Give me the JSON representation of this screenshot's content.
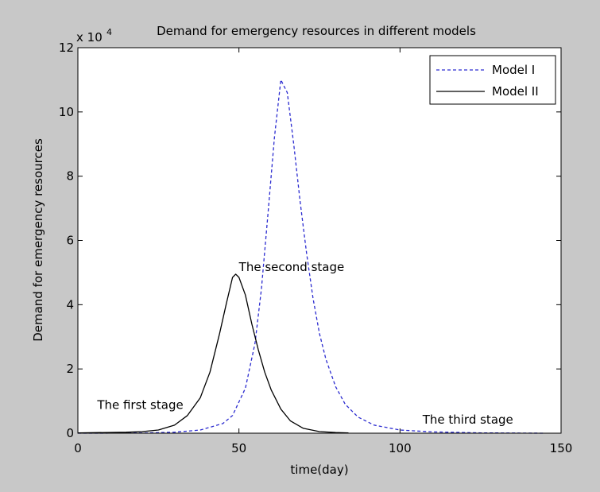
{
  "chart_data": {
    "type": "line",
    "title": "Demand for emergency resources in different models",
    "xlabel": "time(day)",
    "ylabel": "Demand for emergency resources",
    "y_multiplier_label": "x 10",
    "y_multiplier_exponent": "4",
    "xlim": [
      0,
      150
    ],
    "ylim": [
      0,
      12
    ],
    "xticks": [
      "0",
      "50",
      "100",
      "150"
    ],
    "yticks": [
      "0",
      "2",
      "4",
      "6",
      "8",
      "10",
      "12"
    ],
    "grid": false,
    "legend_position": "top-right",
    "series": [
      {
        "name": "Model I",
        "style": "dashed",
        "color": "#2b2bd0",
        "x": [
          0,
          20,
          30,
          38,
          45,
          48,
          52,
          55,
          57,
          59,
          61,
          63,
          65,
          67,
          69,
          71,
          73,
          75,
          77,
          80,
          83,
          87,
          92,
          100,
          110,
          125,
          145
        ],
        "y": [
          0,
          0.005,
          0.03,
          0.1,
          0.3,
          0.55,
          1.4,
          2.8,
          4.5,
          6.8,
          9.2,
          11.0,
          10.6,
          9.0,
          7.2,
          5.6,
          4.2,
          3.1,
          2.3,
          1.45,
          0.9,
          0.5,
          0.25,
          0.1,
          0.04,
          0.01,
          0
        ]
      },
      {
        "name": "Model II",
        "style": "solid",
        "color": "#000000",
        "x": [
          0,
          15,
          20,
          25,
          30,
          34,
          38,
          41,
          44,
          46,
          48,
          49,
          50,
          52,
          54,
          56,
          58,
          60,
          63,
          66,
          70,
          75,
          80,
          84
        ],
        "y": [
          0.01,
          0.03,
          0.05,
          0.1,
          0.25,
          0.55,
          1.1,
          1.9,
          3.1,
          4.0,
          4.85,
          4.95,
          4.85,
          4.3,
          3.4,
          2.6,
          1.9,
          1.35,
          0.75,
          0.38,
          0.15,
          0.05,
          0.02,
          0.01
        ]
      }
    ],
    "annotations": [
      {
        "text": "The first stage",
        "x": 6,
        "y": 0.75
      },
      {
        "text": "The second stage",
        "x": 50,
        "y": 5.05
      },
      {
        "text": "The third stage",
        "x": 107,
        "y": 0.3
      }
    ]
  }
}
